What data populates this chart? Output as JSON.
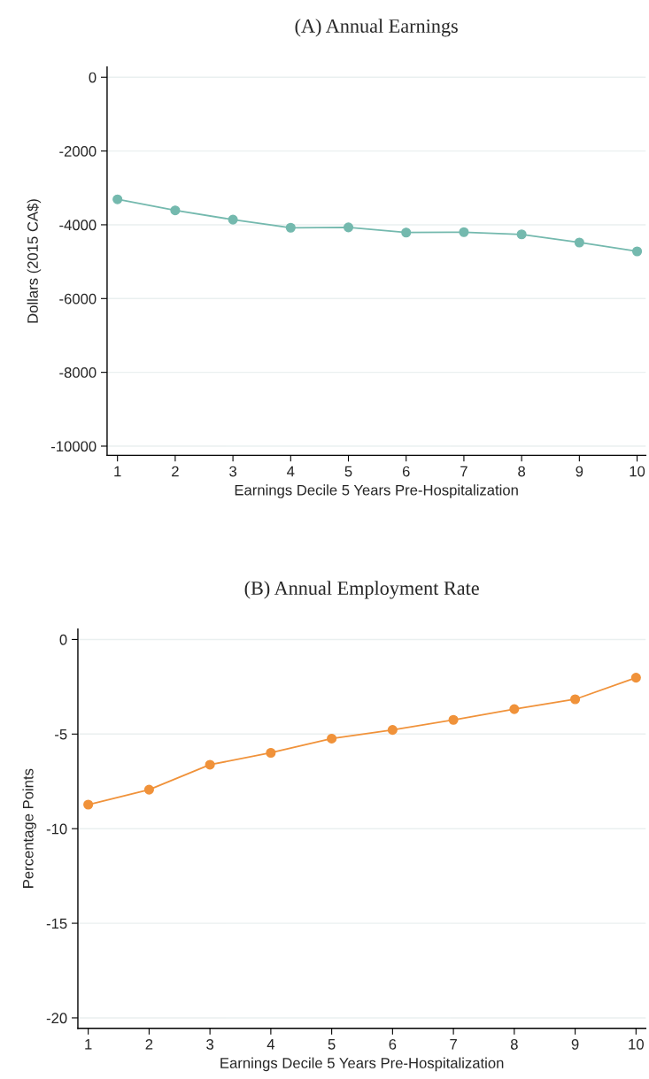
{
  "chart_data": [
    {
      "type": "line",
      "title": "(A) Annual Earnings",
      "xlabel": "Earnings Decile 5 Years Pre-Hospitalization",
      "ylabel": "Dollars (2015 CA$)",
      "x": [
        1,
        2,
        3,
        4,
        5,
        6,
        7,
        8,
        9,
        10
      ],
      "series": [
        {
          "color": "#74b9ae",
          "values": [
            -3310,
            -3610,
            -3860,
            -4080,
            -4070,
            -4210,
            -4200,
            -4260,
            -4480,
            -4720
          ]
        }
      ],
      "xlim": [
        0.82,
        10.15
      ],
      "xticks": [
        1,
        2,
        3,
        4,
        5,
        6,
        7,
        8,
        9,
        10
      ],
      "ylim": [
        -10250,
        280
      ],
      "yticks": [
        -10000,
        -8000,
        -6000,
        -4000,
        -2000,
        0
      ],
      "grid": "y",
      "marker": "circle",
      "line_style": "solid"
    },
    {
      "type": "line",
      "title": "(B) Annual Employment Rate",
      "xlabel": "Earnings Decile 5 Years Pre-Hospitalization",
      "ylabel": "Percentage Points",
      "x": [
        1,
        2,
        3,
        4,
        5,
        6,
        7,
        8,
        9,
        10
      ],
      "series": [
        {
          "color": "#f0923a",
          "values": [
            -8.73,
            -7.94,
            -6.62,
            -5.99,
            -5.24,
            -4.78,
            -4.25,
            -3.68,
            -3.16,
            -2.02
          ]
        }
      ],
      "xlim": [
        0.83,
        10.16
      ],
      "xticks": [
        1,
        2,
        3,
        4,
        5,
        6,
        7,
        8,
        9,
        10
      ],
      "ylim": [
        -20.55,
        0.55
      ],
      "yticks": [
        -20,
        -15,
        -10,
        -5,
        0
      ],
      "grid": "y",
      "marker": "circle",
      "line_style": "solid"
    }
  ]
}
